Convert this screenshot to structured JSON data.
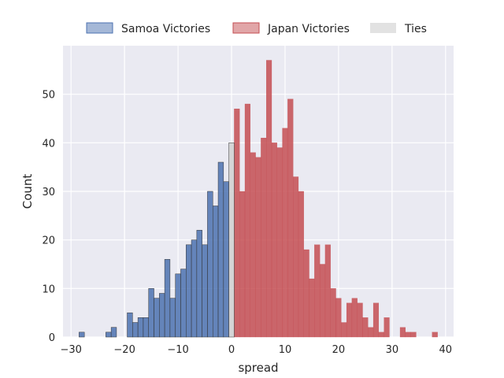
{
  "chart_data": {
    "type": "bar",
    "xlabel": "spread",
    "ylabel": "Count",
    "xlim": [
      -31.5,
      41.5
    ],
    "ylim": [
      0,
      60
    ],
    "xticks": [
      -30,
      -20,
      -10,
      0,
      10,
      20,
      30,
      40
    ],
    "yticks": [
      0,
      10,
      20,
      30,
      40,
      50
    ],
    "grid": true,
    "legend_position": "top-center",
    "series": [
      {
        "name": "Samoa Victories",
        "color": "#4c72b0",
        "x": [
          -28,
          -23,
          -22,
          -19,
          -18,
          -17,
          -16,
          -15,
          -14,
          -13,
          -12,
          -11,
          -10,
          -9,
          -8,
          -7,
          -6,
          -5,
          -4,
          -3,
          -2,
          -1
        ],
        "values": [
          1,
          1,
          2,
          5,
          3,
          4,
          4,
          10,
          8,
          9,
          16,
          8,
          13,
          14,
          19,
          20,
          22,
          19,
          30,
          27,
          36,
          32
        ]
      },
      {
        "name": "Japan Victories",
        "color": "#c44e52",
        "x": [
          1,
          2,
          3,
          4,
          5,
          6,
          7,
          8,
          9,
          10,
          11,
          12,
          13,
          14,
          15,
          16,
          17,
          18,
          19,
          20,
          21,
          22,
          23,
          24,
          25,
          26,
          27,
          28,
          29,
          32,
          33,
          34,
          38
        ],
        "values": [
          47,
          30,
          48,
          38,
          37,
          41,
          57,
          40,
          39,
          43,
          49,
          33,
          30,
          18,
          12,
          19,
          15,
          19,
          10,
          8,
          3,
          7,
          8,
          7,
          4,
          2,
          7,
          1,
          4,
          2,
          1,
          1,
          1
        ]
      },
      {
        "name": "Ties",
        "color": "#cfcfcf",
        "x": [
          0
        ],
        "values": [
          40
        ]
      }
    ]
  }
}
